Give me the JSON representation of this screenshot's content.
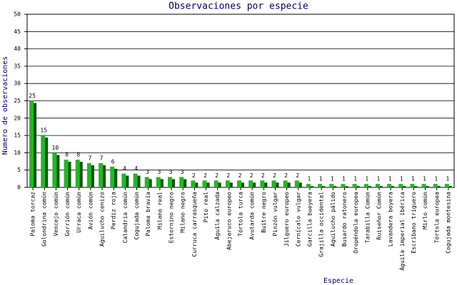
{
  "chart_data": {
    "type": "bar",
    "title": "Observaciones por especie",
    "x_label": "Especie",
    "y_label": "Numero de observaciones",
    "categories": [
      "Paloma torcaz",
      "Golondrina común",
      "Vencejo común",
      "Gorrión común",
      "Urraca común",
      "Avión común",
      "Aguilucho cenizo",
      "Perdiz roja",
      "Calandria común",
      "Cogujada común",
      "Paloma bravía",
      "Milano real",
      "Estornino negro",
      "Milano negro",
      "Curruca carrasqueña",
      "Pito real",
      "Águila calzada",
      "Abejaruco europeo",
      "Tórtola turca",
      "Avutarda común",
      "Buitre negro",
      "Pinzón vulgar",
      "Jilguero europeo",
      "Cernícalo vulgar",
      "Garcilla bueyera",
      "Grajilla occidental",
      "Aguilucho pálido",
      "Busardo ratonero",
      "Oropéndola europea",
      "Tarabilla Común",
      "Ruiseñor Común",
      "Lavandera boyera",
      "Águila imperial ibérica",
      "Escribano triguero",
      "Mirlo común",
      "Tórtola europea",
      "Cogujada montesina"
    ],
    "values": [
      25,
      15,
      10,
      8,
      8,
      7,
      7,
      6,
      4,
      4,
      3,
      3,
      3,
      3,
      2,
      2,
      2,
      2,
      2,
      2,
      2,
      2,
      2,
      2,
      1,
      1,
      1,
      1,
      1,
      1,
      1,
      1,
      1,
      1,
      1,
      1,
      1
    ],
    "color": "#22b822",
    "shadow_color": "#145214",
    "ylim": [
      0,
      50
    ],
    "yticks": [
      0,
      5,
      10,
      15,
      20,
      25,
      30,
      35,
      40,
      45,
      50
    ],
    "grid": true
  }
}
